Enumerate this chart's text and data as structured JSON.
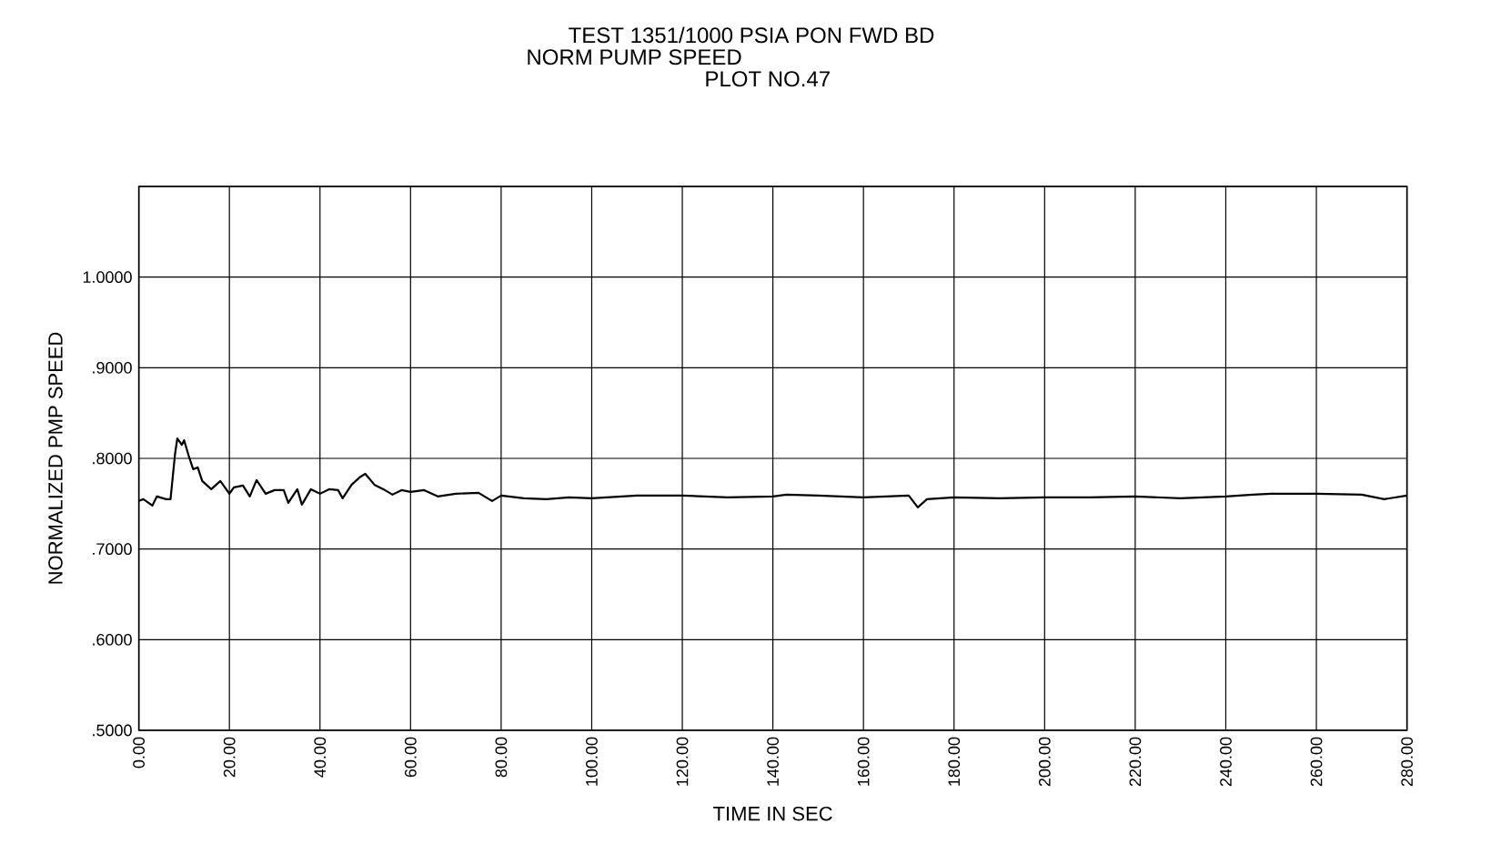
{
  "chart_data": {
    "type": "line",
    "title": "TEST 1351/1000 PSIA PON FWD BD",
    "subtitle": "NORM PUMP SPEED",
    "annotations": [
      "PLOT NO.47"
    ],
    "xlabel": "TIME IN SEC",
    "ylabel": "NORMALIZED PMP SPEED",
    "x": [
      0,
      1,
      3,
      4,
      6,
      7,
      8,
      8.5,
      9.5,
      10,
      11,
      12,
      13,
      14,
      16,
      18,
      20,
      21,
      23,
      24.5,
      26,
      28,
      30,
      32,
      33,
      35,
      36,
      38,
      40,
      42,
      44,
      45,
      47,
      49,
      50,
      52,
      54,
      56,
      58,
      60,
      63,
      66,
      70,
      75,
      78,
      80,
      85,
      90,
      95,
      100,
      110,
      120,
      130,
      140,
      143,
      150,
      160,
      170,
      172,
      174,
      180,
      190,
      200,
      210,
      220,
      230,
      240,
      246,
      250,
      260,
      270,
      275,
      280
    ],
    "series": [
      {
        "color": "#000000",
        "values": [
          0.753,
          0.755,
          0.748,
          0.758,
          0.755,
          0.755,
          0.805,
          0.822,
          0.815,
          0.82,
          0.803,
          0.788,
          0.79,
          0.775,
          0.766,
          0.775,
          0.761,
          0.768,
          0.77,
          0.758,
          0.776,
          0.761,
          0.765,
          0.765,
          0.751,
          0.766,
          0.749,
          0.766,
          0.761,
          0.766,
          0.765,
          0.756,
          0.771,
          0.78,
          0.783,
          0.771,
          0.766,
          0.76,
          0.765,
          0.763,
          0.765,
          0.758,
          0.761,
          0.762,
          0.753,
          0.759,
          0.756,
          0.755,
          0.757,
          0.756,
          0.759,
          0.759,
          0.757,
          0.758,
          0.76,
          0.759,
          0.757,
          0.759,
          0.746,
          0.755,
          0.757,
          0.756,
          0.757,
          0.757,
          0.758,
          0.756,
          0.758,
          0.76,
          0.761,
          0.761,
          0.76,
          0.755,
          0.759
        ]
      }
    ],
    "xlim": [
      0,
      280
    ],
    "ylim": [
      0.5,
      1.1
    ],
    "xticks": [
      {
        "value": 0,
        "label": "0.00"
      },
      {
        "value": 20,
        "label": "20.00"
      },
      {
        "value": 40,
        "label": "40.00"
      },
      {
        "value": 60,
        "label": "60.00"
      },
      {
        "value": 80,
        "label": "80.00"
      },
      {
        "value": 100,
        "label": "100.00"
      },
      {
        "value": 120,
        "label": "120.00"
      },
      {
        "value": 140,
        "label": "140.00"
      },
      {
        "value": 160,
        "label": "160.00"
      },
      {
        "value": 180,
        "label": "180.00"
      },
      {
        "value": 200,
        "label": "200.00"
      },
      {
        "value": 220,
        "label": "220.00"
      },
      {
        "value": 240,
        "label": "240.00"
      },
      {
        "value": 260,
        "label": "260.00"
      },
      {
        "value": 280,
        "label": "280.00"
      }
    ],
    "yticks": [
      {
        "value": 0.5,
        "label": ".5000"
      },
      {
        "value": 0.6,
        "label": ".6000"
      },
      {
        "value": 0.7,
        "label": ".7000"
      },
      {
        "value": 0.8,
        "label": ".8000"
      },
      {
        "value": 0.9,
        "label": ".9000"
      },
      {
        "value": 1.0,
        "label": "1.0000"
      },
      {
        "value": 1.1,
        "label": null
      }
    ],
    "grid": true
  }
}
